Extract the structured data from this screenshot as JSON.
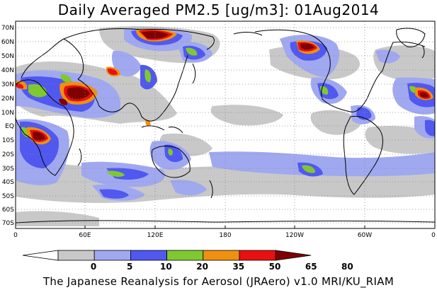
{
  "title": "Daily Averaged PM2.5 [ug/m3]: 01Aug2014",
  "credit": "The Japanese Reanalysis for Aerosol (JRAero) v1.0 MRI/KU_RIAM",
  "lat_labels": [
    "70N",
    "60N",
    "50N",
    "40N",
    "30N",
    "20N",
    "10N",
    "EQ",
    "10S",
    "20S",
    "30S",
    "40S",
    "50S",
    "60S",
    "70S"
  ],
  "lon_labels": [
    "0",
    "60E",
    "120E",
    "180",
    "120W",
    "60W",
    "0"
  ],
  "legend": {
    "levels": [
      "0",
      "5",
      "10",
      "20",
      "35",
      "50",
      "65",
      "80"
    ],
    "colors": [
      "#ffffff",
      "#c8c8c8",
      "#a0a8f0",
      "#5058f0",
      "#80c830",
      "#f09010",
      "#e81010",
      "#800000"
    ]
  }
}
